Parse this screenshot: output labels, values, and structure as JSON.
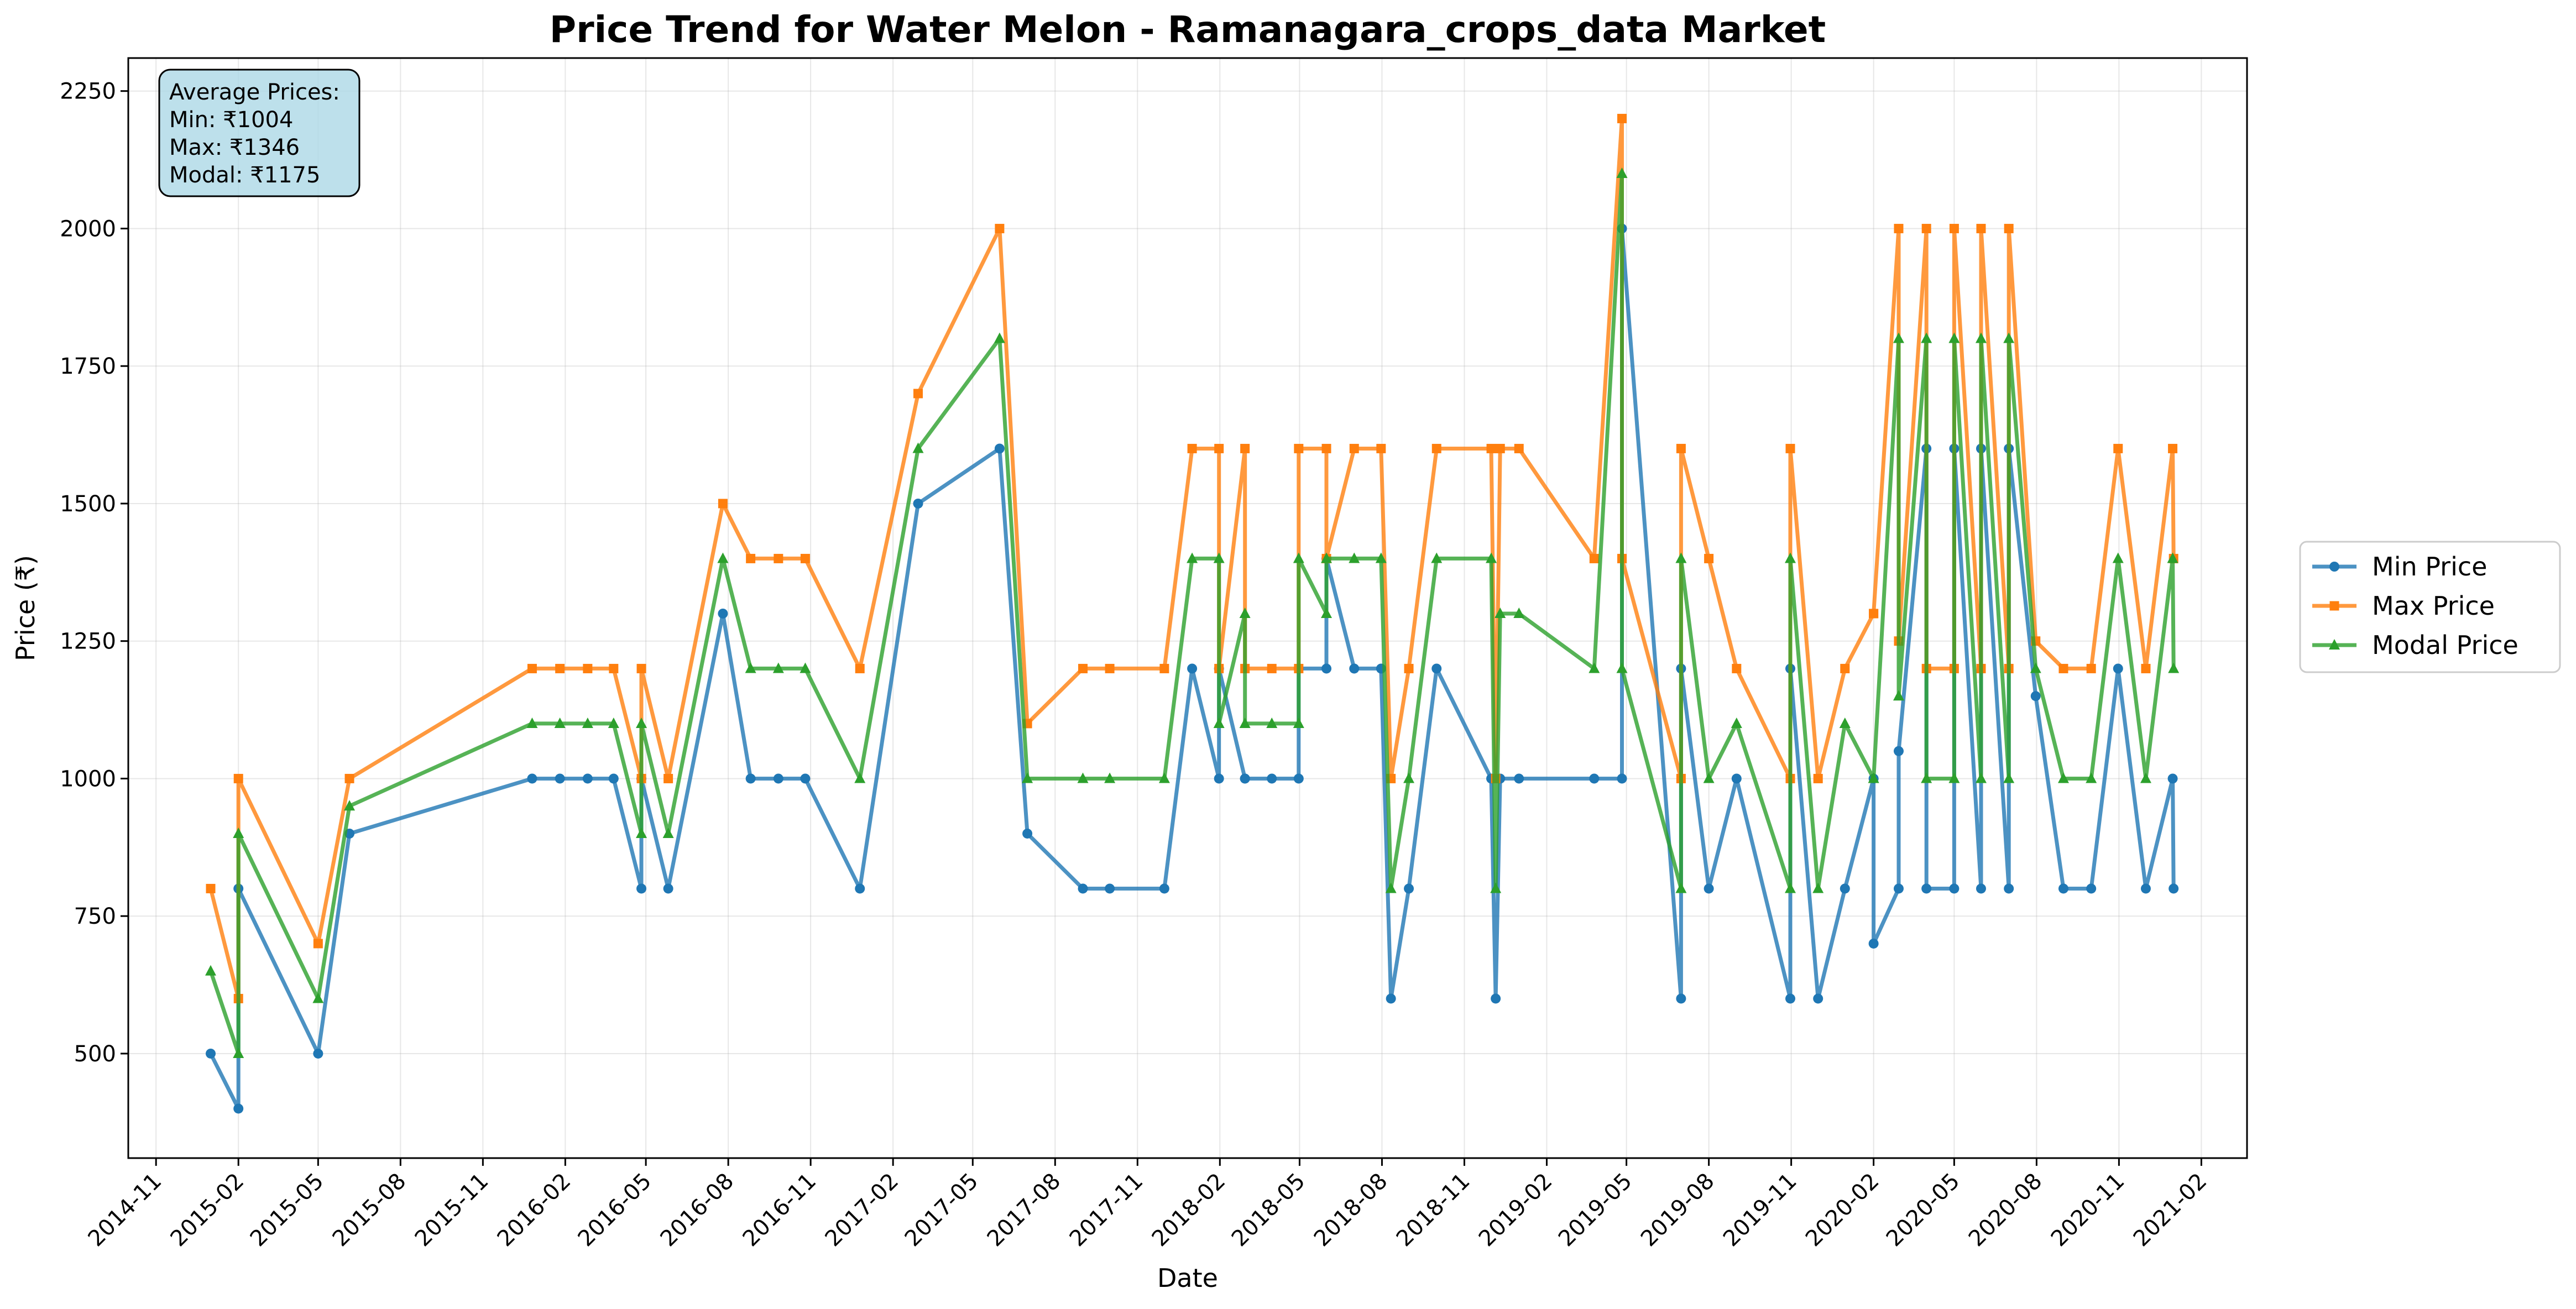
{
  "chart_data": {
    "type": "line",
    "title": "Price Trend for Water Melon - Ramanagara_crops_data Market",
    "xlabel": "Date",
    "ylabel": "Price (₹)",
    "ylim": [
      310,
      2310
    ],
    "xlim": [
      "2014-10-01",
      "2021-03-24"
    ],
    "grid": true,
    "legend_position": "outside-right",
    "y_ticks": [
      500,
      750,
      1000,
      1250,
      1500,
      1750,
      2000,
      2250
    ],
    "x_ticks": [
      "2014-11",
      "2015-02",
      "2015-05",
      "2015-08",
      "2015-11",
      "2016-02",
      "2016-05",
      "2016-08",
      "2016-11",
      "2017-02",
      "2017-05",
      "2017-08",
      "2017-11",
      "2018-02",
      "2018-05",
      "2018-08",
      "2018-11",
      "2019-02",
      "2019-05",
      "2019-08",
      "2019-11",
      "2020-02",
      "2020-05",
      "2020-08",
      "2020-11",
      "2021-02"
    ],
    "annotation": {
      "lines": [
        "Average Prices:",
        "Min: ₹1004",
        "Max: ₹1346",
        "Modal: ₹1175"
      ],
      "background": "#add8e6"
    },
    "x": [
      "2015-01-01",
      "2015-02-01",
      "2015-02-01",
      "2015-05-01",
      "2015-06-05",
      "2015-12-26",
      "2016-01-26",
      "2016-02-26",
      "2016-03-26",
      "2016-04-26",
      "2016-04-26",
      "2016-05-26",
      "2016-07-26",
      "2016-08-26",
      "2016-09-26",
      "2016-10-26",
      "2016-12-26",
      "2017-03-01",
      "2017-05-31",
      "2017-07-01",
      "2017-09-01",
      "2017-10-01",
      "2017-12-01",
      "2018-01-01",
      "2018-01-31",
      "2018-01-31",
      "2018-03-01",
      "2018-03-01",
      "2018-03-31",
      "2018-04-30",
      "2018-04-30",
      "2018-05-31",
      "2018-05-31",
      "2018-07-01",
      "2018-07-31",
      "2018-08-11",
      "2018-08-31",
      "2018-10-01",
      "2018-12-01",
      "2018-12-06",
      "2018-12-11",
      "2019-01-01",
      "2019-03-26",
      "2019-04-26",
      "2019-04-26",
      "2019-07-01",
      "2019-07-01",
      "2019-08-01",
      "2019-09-01",
      "2019-10-31",
      "2019-10-31",
      "2019-12-01",
      "2019-12-31",
      "2020-02-01",
      "2020-02-01",
      "2020-02-29",
      "2020-02-29",
      "2020-03-31",
      "2020-03-31",
      "2020-05-01",
      "2020-05-01",
      "2020-05-31",
      "2020-05-31",
      "2020-07-01",
      "2020-07-01",
      "2020-07-31",
      "2020-08-31",
      "2020-10-01",
      "2020-10-31",
      "2020-12-01",
      "2020-12-31",
      "2021-01-01"
    ],
    "series": [
      {
        "name": "Min Price",
        "color": "#1f77b4",
        "marker": "circle",
        "values": [
          500,
          400,
          800,
          500,
          900,
          1000,
          1000,
          1000,
          1000,
          800,
          1000,
          800,
          1300,
          1000,
          1000,
          1000,
          800,
          1500,
          1600,
          900,
          800,
          800,
          800,
          1200,
          1000,
          1200,
          1000,
          1000,
          1000,
          1000,
          1200,
          1200,
          1400,
          1200,
          1200,
          600,
          800,
          1200,
          1000,
          600,
          1000,
          1000,
          1000,
          1000,
          2000,
          600,
          1200,
          800,
          1000,
          600,
          1200,
          600,
          800,
          1000,
          700,
          800,
          1050,
          1600,
          800,
          800,
          1600,
          800,
          1600,
          800,
          1600,
          1150,
          800,
          800,
          1200,
          800,
          1000,
          800
        ]
      },
      {
        "name": "Max Price",
        "color": "#ff7f0e",
        "marker": "square",
        "values": [
          800,
          600,
          1000,
          700,
          1000,
          1200,
          1200,
          1200,
          1200,
          1000,
          1200,
          1000,
          1500,
          1400,
          1400,
          1400,
          1200,
          1700,
          2000,
          1100,
          1200,
          1200,
          1200,
          1600,
          1600,
          1200,
          1600,
          1200,
          1200,
          1200,
          1600,
          1600,
          1400,
          1600,
          1600,
          1000,
          1200,
          1600,
          1600,
          1000,
          1600,
          1600,
          1400,
          2200,
          1400,
          1000,
          1600,
          1400,
          1200,
          1000,
          1600,
          1000,
          1200,
          1300,
          1300,
          2000,
          1250,
          2000,
          1200,
          1200,
          2000,
          1200,
          2000,
          1200,
          2000,
          1250,
          1200,
          1200,
          1600,
          1200,
          1600,
          1400
        ]
      },
      {
        "name": "Modal Price",
        "color": "#2ca02c",
        "marker": "triangle",
        "values": [
          650,
          500,
          900,
          600,
          950,
          1100,
          1100,
          1100,
          1100,
          900,
          1100,
          900,
          1400,
          1200,
          1200,
          1200,
          1000,
          1600,
          1800,
          1000,
          1000,
          1000,
          1000,
          1400,
          1400,
          1100,
          1300,
          1100,
          1100,
          1100,
          1400,
          1300,
          1400,
          1400,
          1400,
          800,
          1000,
          1400,
          1400,
          800,
          1300,
          1300,
          1200,
          2100,
          1200,
          800,
          1400,
          1000,
          1100,
          800,
          1400,
          800,
          1100,
          1000,
          1000,
          1800,
          1150,
          1800,
          1000,
          1000,
          1800,
          1000,
          1800,
          1000,
          1800,
          1200,
          1000,
          1000,
          1400,
          1000,
          1400,
          1200
        ]
      }
    ]
  }
}
